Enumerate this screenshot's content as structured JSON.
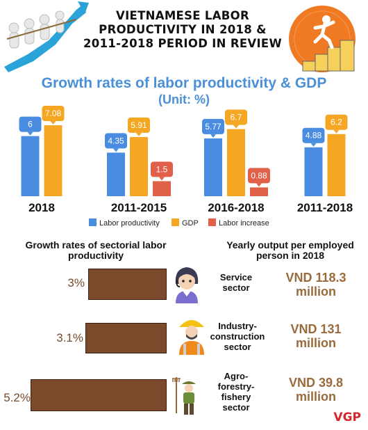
{
  "header": {
    "title": "VIETNAMESE LABOR PRODUCTIVITY IN 2018 & 2011-2018 PERIOD IN REVIEW"
  },
  "chart_heading": {
    "title": "Growth rates of labor productivity & GDP",
    "unit": "(Unit: %)"
  },
  "chart_data": {
    "type": "bar",
    "categories": [
      "2018",
      "2011-2015",
      "2016-2018",
      "2011-2018"
    ],
    "series": [
      {
        "name": "Labor productivity",
        "color": "#4a8de0",
        "values": [
          6,
          4.35,
          5.77,
          4.88
        ],
        "labels": [
          "6",
          "4.35",
          "5.77",
          "4.88"
        ]
      },
      {
        "name": "GDP",
        "color": "#f5a623",
        "values": [
          7.08,
          5.91,
          6.7,
          6.2
        ],
        "labels": [
          "7.08",
          "5.91",
          "6.7",
          "6.2"
        ]
      },
      {
        "name": "Labor increase",
        "color": "#e0604a",
        "values": [
          null,
          1.5,
          0.88,
          null
        ],
        "labels": [
          "",
          "1.5",
          "0.88",
          ""
        ]
      }
    ],
    "legend_position": "bottom"
  },
  "sectors": {
    "left_heading": "Growth rates of sectorial labor productivity",
    "right_heading": "Yearly output per employed person in 2018",
    "bar_color": "#7a4a2a",
    "items": [
      {
        "name": "Service sector",
        "growth_label": "3%",
        "growth": 3.0,
        "output": "VND 118.3 million",
        "icon": "service-worker-icon"
      },
      {
        "name": "Industry-construction sector",
        "growth_label": "3.1%",
        "growth": 3.1,
        "output": "VND 131 million",
        "icon": "construction-worker-icon"
      },
      {
        "name": "Agro-forestry-fishery sector",
        "growth_label": "5.2%",
        "growth": 5.2,
        "output": "VND 39.8 million",
        "icon": "farmer-icon"
      }
    ]
  },
  "footer": {
    "brand": "VGP"
  }
}
